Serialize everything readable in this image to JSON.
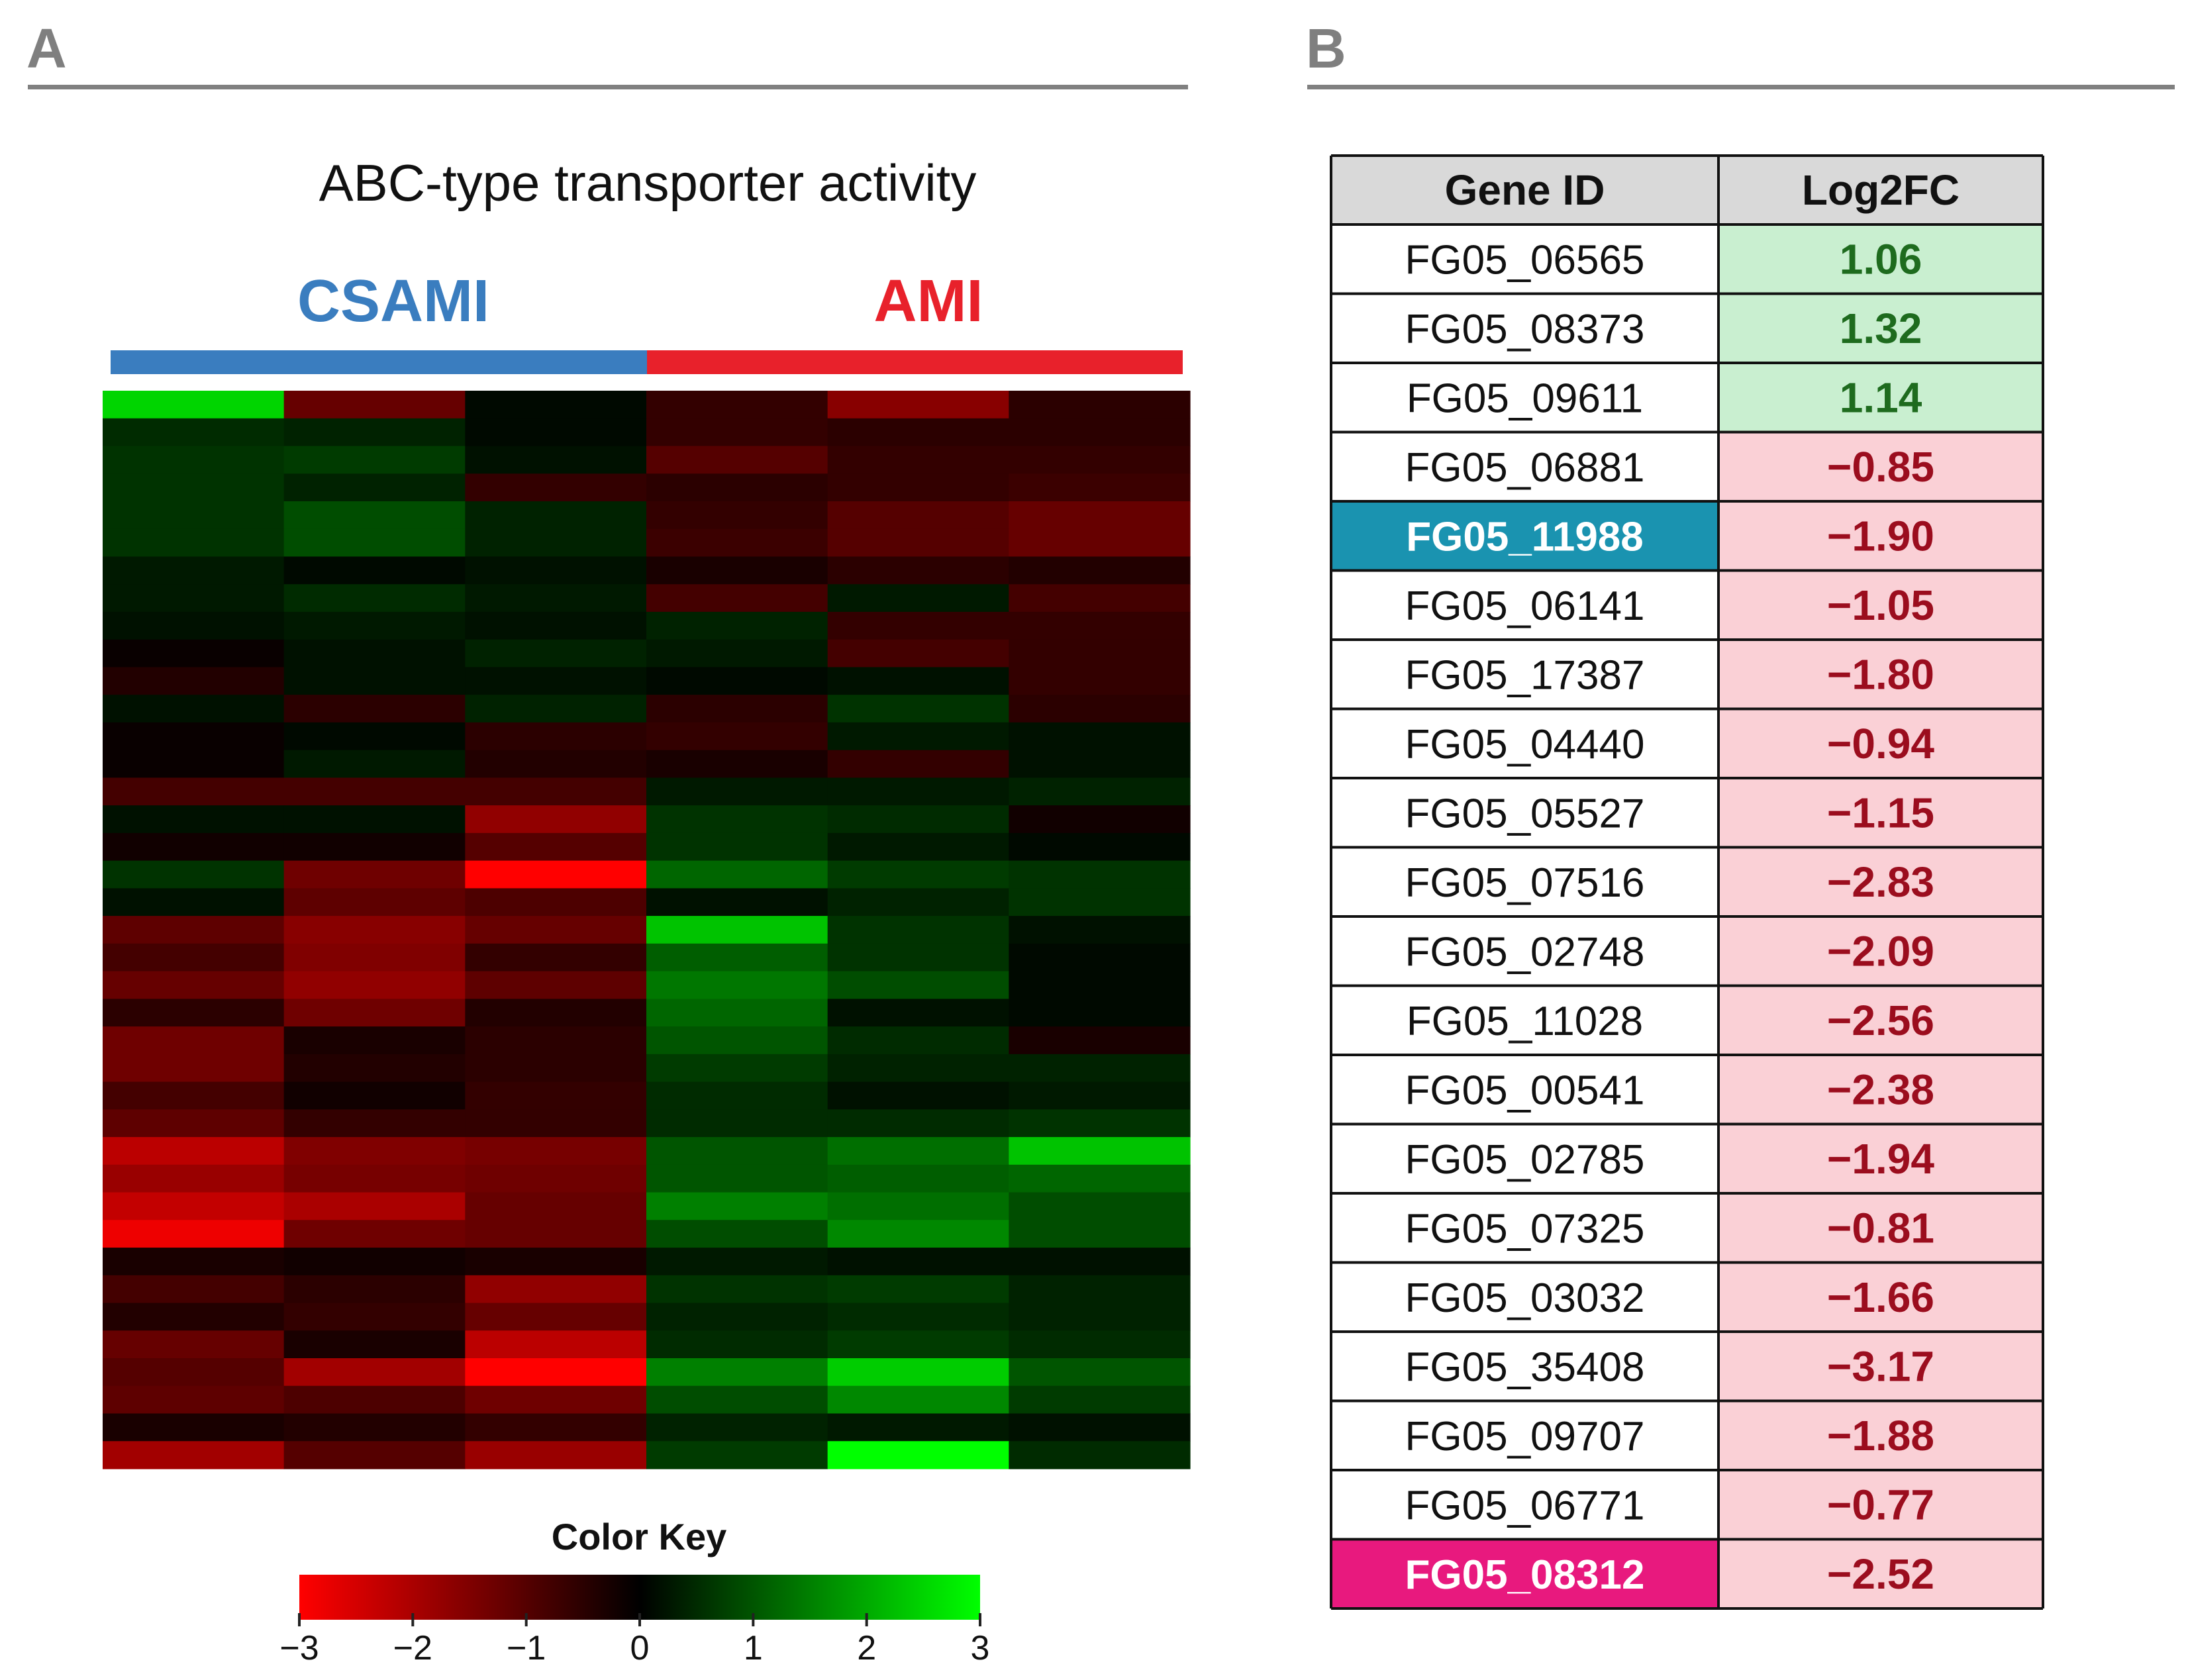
{
  "panels": {
    "a_label": "A",
    "b_label": "B"
  },
  "colors": {
    "csami": "#3a7dbf",
    "ami": "#e8212b",
    "low": "#ff0000",
    "mid": "#000000",
    "high": "#00ff00",
    "up_fill": "#c9efd0",
    "down_fill": "#fad0d6",
    "up_text": "#1e6b1e",
    "down_text": "#9b0d1e",
    "header_fill": "#d9d9d9",
    "highlight_blue": "#1a93b0",
    "highlight_pink": "#e8197e"
  },
  "chart_data": [
    {
      "type": "heatmap",
      "title": "ABC-type transporter activity",
      "groups": [
        {
          "name": "CSAMI",
          "columns": 3,
          "color": "#3a7dbf"
        },
        {
          "name": "AMI",
          "columns": 3,
          "color": "#e8212b"
        }
      ],
      "n_rows": 39,
      "n_cols": 6,
      "value_range": [
        -3,
        3
      ],
      "colormap": [
        "#ff0000",
        "#000000",
        "#00ff00"
      ],
      "values": [
        [
          2.5,
          -1.2,
          0.1,
          -0.6,
          -1.6,
          -0.5
        ],
        [
          0.5,
          0.4,
          0.1,
          -0.6,
          -0.5,
          -0.5
        ],
        [
          0.6,
          0.7,
          0.2,
          -1.0,
          -0.6,
          -0.6
        ],
        [
          0.6,
          0.4,
          -0.6,
          -0.5,
          -0.6,
          -0.7
        ],
        [
          0.6,
          0.9,
          0.4,
          -0.6,
          -1.0,
          -1.2
        ],
        [
          0.6,
          0.9,
          0.4,
          -0.7,
          -1.0,
          -1.2
        ],
        [
          0.3,
          0.1,
          0.2,
          -0.3,
          -0.5,
          -0.4
        ],
        [
          0.3,
          0.5,
          0.3,
          -0.8,
          0.3,
          -0.8
        ],
        [
          0.2,
          0.3,
          0.2,
          0.4,
          -0.6,
          -0.6
        ],
        [
          -0.1,
          0.2,
          0.4,
          0.3,
          -0.8,
          -0.6
        ],
        [
          -0.4,
          0.2,
          0.2,
          0.1,
          0.2,
          -0.6
        ],
        [
          0.2,
          -0.5,
          0.4,
          -0.5,
          0.6,
          -0.5
        ],
        [
          -0.1,
          0.1,
          -0.5,
          -0.6,
          0.3,
          0.2
        ],
        [
          -0.1,
          0.3,
          -0.4,
          -0.3,
          -0.6,
          0.2
        ],
        [
          -0.8,
          -0.8,
          -0.8,
          0.3,
          0.3,
          0.4
        ],
        [
          0.2,
          0.2,
          -1.7,
          0.6,
          0.5,
          -0.2
        ],
        [
          -0.2,
          -0.2,
          -1.0,
          0.6,
          0.3,
          0.1
        ],
        [
          0.6,
          -1.3,
          -3.0,
          1.2,
          0.7,
          0.6
        ],
        [
          0.2,
          -1.1,
          -0.9,
          0.2,
          0.4,
          0.6
        ],
        [
          -1.1,
          -1.6,
          -1.2,
          2.3,
          0.6,
          0.2
        ],
        [
          -0.8,
          -1.5,
          -0.6,
          1.1,
          0.6,
          0.1
        ],
        [
          -1.2,
          -1.7,
          -1.1,
          1.4,
          0.9,
          0.1
        ],
        [
          -0.5,
          -1.3,
          -0.4,
          1.2,
          0.2,
          0.1
        ],
        [
          -1.3,
          -0.3,
          -0.5,
          1.0,
          0.5,
          -0.3
        ],
        [
          -1.3,
          -0.4,
          -0.5,
          0.7,
          0.4,
          0.4
        ],
        [
          -0.8,
          -0.2,
          -0.6,
          0.5,
          0.2,
          0.3
        ],
        [
          -1.1,
          -0.6,
          -0.6,
          0.5,
          0.5,
          0.6
        ],
        [
          -2.2,
          -1.5,
          -1.4,
          1.0,
          1.3,
          2.3
        ],
        [
          -1.8,
          -1.4,
          -1.3,
          1.0,
          1.1,
          1.2
        ],
        [
          -2.3,
          -2.0,
          -1.2,
          1.5,
          1.3,
          0.9
        ],
        [
          -2.8,
          -1.3,
          -1.2,
          0.9,
          1.6,
          0.9
        ],
        [
          -0.3,
          -0.2,
          -0.3,
          0.3,
          0.2,
          0.2
        ],
        [
          -0.8,
          -0.5,
          -1.7,
          0.6,
          0.7,
          0.4
        ],
        [
          -0.4,
          -0.6,
          -1.2,
          0.4,
          0.5,
          0.4
        ],
        [
          -1.2,
          -0.3,
          -2.2,
          0.5,
          0.7,
          0.5
        ],
        [
          -1.0,
          -1.9,
          -3.0,
          1.5,
          2.4,
          1.0
        ],
        [
          -1.1,
          -0.9,
          -1.3,
          0.9,
          1.6,
          0.7
        ],
        [
          -0.3,
          -0.4,
          -0.6,
          0.4,
          0.3,
          0.2
        ],
        [
          -1.9,
          -1.0,
          -1.8,
          0.7,
          3.0,
          0.5
        ]
      ],
      "color_key": {
        "title": "Color Key",
        "ticks": [
          "−3",
          "−2",
          "−1",
          "0",
          "1",
          "2",
          "3"
        ],
        "tick_values": [
          -3,
          -2,
          -1,
          0,
          1,
          2,
          3
        ]
      }
    },
    {
      "type": "table",
      "columns": [
        "Gene ID",
        "Log2FC"
      ],
      "rows": [
        {
          "gene": "FG05_06565",
          "value": "1.06",
          "direction": "up",
          "highlight": ""
        },
        {
          "gene": "FG05_08373",
          "value": "1.32",
          "direction": "up",
          "highlight": ""
        },
        {
          "gene": "FG05_09611",
          "value": "1.14",
          "direction": "up",
          "highlight": ""
        },
        {
          "gene": "FG05_06881",
          "value": "−0.85",
          "direction": "down",
          "highlight": ""
        },
        {
          "gene": "FG05_11988",
          "value": "−1.90",
          "direction": "down",
          "highlight": "blue"
        },
        {
          "gene": "FG05_06141",
          "value": "−1.05",
          "direction": "down",
          "highlight": ""
        },
        {
          "gene": "FG05_17387",
          "value": "−1.80",
          "direction": "down",
          "highlight": ""
        },
        {
          "gene": "FG05_04440",
          "value": "−0.94",
          "direction": "down",
          "highlight": ""
        },
        {
          "gene": "FG05_05527",
          "value": "−1.15",
          "direction": "down",
          "highlight": ""
        },
        {
          "gene": "FG05_07516",
          "value": "−2.83",
          "direction": "down",
          "highlight": ""
        },
        {
          "gene": "FG05_02748",
          "value": "−2.09",
          "direction": "down",
          "highlight": ""
        },
        {
          "gene": "FG05_11028",
          "value": "−2.56",
          "direction": "down",
          "highlight": ""
        },
        {
          "gene": "FG05_00541",
          "value": "−2.38",
          "direction": "down",
          "highlight": ""
        },
        {
          "gene": "FG05_02785",
          "value": "−1.94",
          "direction": "down",
          "highlight": ""
        },
        {
          "gene": "FG05_07325",
          "value": "−0.81",
          "direction": "down",
          "highlight": ""
        },
        {
          "gene": "FG05_03032",
          "value": "−1.66",
          "direction": "down",
          "highlight": ""
        },
        {
          "gene": "FG05_35408",
          "value": "−3.17",
          "direction": "down",
          "highlight": ""
        },
        {
          "gene": "FG05_09707",
          "value": "−1.88",
          "direction": "down",
          "highlight": ""
        },
        {
          "gene": "FG05_06771",
          "value": "−0.77",
          "direction": "down",
          "highlight": ""
        },
        {
          "gene": "FG05_08312",
          "value": "−2.52",
          "direction": "down",
          "highlight": "pink"
        }
      ]
    }
  ]
}
